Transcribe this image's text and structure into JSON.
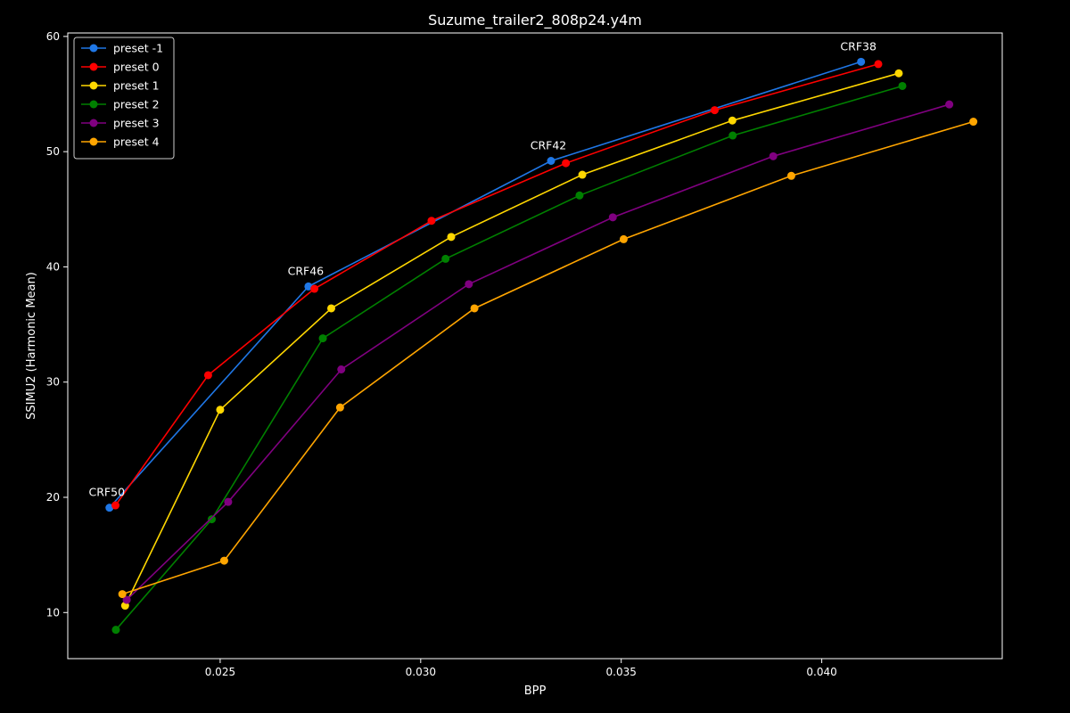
{
  "chart_data": {
    "type": "line",
    "title": "Suzume_trailer2_808p24.y4m",
    "xlabel": "BPP",
    "ylabel": "SSIMU2 (Harmonic Mean)",
    "xlim": [
      0.0212,
      0.0445
    ],
    "ylim": [
      6.0,
      60.3
    ],
    "xticks": [
      0.025,
      0.03,
      0.035,
      0.04
    ],
    "xtick_labels": [
      "0.025",
      "0.030",
      "0.035",
      "0.040"
    ],
    "yticks": [
      10,
      20,
      30,
      40,
      50,
      60
    ],
    "ytick_labels": [
      "10",
      "20",
      "30",
      "40",
      "50",
      "60"
    ],
    "grid": false,
    "legend_position": "top-left",
    "background": "#000000",
    "series": [
      {
        "name": "preset -1",
        "color": "#1f77e6",
        "x": [
          0.02224,
          0.0272,
          0.03325,
          0.04098
        ],
        "y": [
          19.1,
          38.3,
          49.2,
          57.8
        ]
      },
      {
        "name": "preset 0",
        "color": "#ff0000",
        "x": [
          0.02239,
          0.0247,
          0.02735,
          0.03027,
          0.03362,
          0.03733,
          0.04141
        ],
        "y": [
          19.3,
          30.6,
          38.1,
          44.0,
          49.0,
          53.6,
          57.6
        ]
      },
      {
        "name": "preset 1",
        "color": "#ffd700",
        "x": [
          0.02263,
          0.025,
          0.02777,
          0.03076,
          0.03403,
          0.03777,
          0.04192
        ],
        "y": [
          10.6,
          27.6,
          36.4,
          42.6,
          48.0,
          52.7,
          56.8
        ]
      },
      {
        "name": "preset 2",
        "color": "#008000",
        "x": [
          0.0224,
          0.02479,
          0.02756,
          0.03062,
          0.03396,
          0.03778,
          0.04201
        ],
        "y": [
          8.5,
          18.1,
          33.8,
          40.7,
          46.2,
          51.4,
          55.7
        ]
      },
      {
        "name": "preset 3",
        "color": "#800080",
        "x": [
          0.02267,
          0.0252,
          0.02802,
          0.0312,
          0.03479,
          0.03879,
          0.04318
        ],
        "y": [
          11.1,
          19.6,
          31.1,
          38.5,
          44.3,
          49.6,
          54.1
        ]
      },
      {
        "name": "preset 4",
        "color": "#ffa500",
        "x": [
          0.02256,
          0.0251,
          0.02799,
          0.03134,
          0.03506,
          0.03924,
          0.04378
        ],
        "y": [
          11.6,
          14.5,
          27.8,
          36.4,
          42.4,
          47.9,
          52.6
        ]
      }
    ],
    "annotations": [
      {
        "text": "CRF50",
        "x": 0.02224,
        "y": 19.1
      },
      {
        "text": "CRF46",
        "x": 0.0272,
        "y": 38.3
      },
      {
        "text": "CRF42",
        "x": 0.03325,
        "y": 49.2
      },
      {
        "text": "CRF38",
        "x": 0.04098,
        "y": 57.8
      }
    ]
  }
}
